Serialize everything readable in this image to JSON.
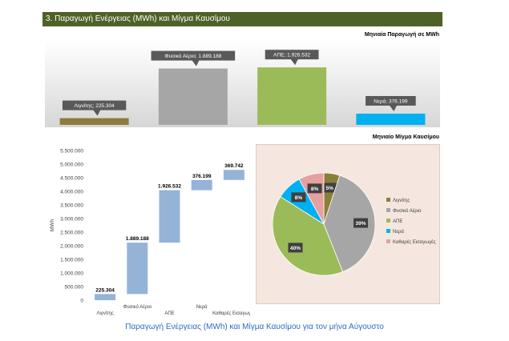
{
  "header": {
    "title": "3. Παραγωγή Ενέργειας (MWh) και Μίγμα Καυσίμου"
  },
  "caption": "Παραγωγή Ενέργειας (MWh) και Μίγμα Καυσίμου για τον μήνα Αύγουστο",
  "chart_data": [
    {
      "type": "bar",
      "title": "Μηνιαία Παραγωγή σε MWh",
      "categories": [
        "Λιγνίτης",
        "Φυσικό Αέριο",
        "ΑΠΕ",
        "Νερά"
      ],
      "values": [
        225304,
        1889188,
        1926532,
        376199
      ],
      "labels": [
        "Λιγνίτης; 225.304",
        "Φυσικό Αέριο; 1.889.188",
        "ΑΠΕ; 1.926.532",
        "Νερά; 376.199"
      ],
      "colors": [
        "#8b7d3a",
        "#a6a6a6",
        "#9bbb59",
        "#00b0f0"
      ],
      "ylim": [
        0,
        2200000
      ]
    },
    {
      "type": "bar",
      "subtype": "waterfall",
      "categories": [
        "Λιγνίτης",
        "Φυσικό Αέριο",
        "ΑΠΕ",
        "Νερά",
        "Καθαρές Εισαγωγές"
      ],
      "values": [
        225304,
        1889188,
        1926532,
        376199,
        369742
      ],
      "labels": [
        "225.304",
        "1.889.188",
        "1.926.532",
        "376.199",
        "369.742"
      ],
      "ylabel": "MWh",
      "yticks": [
        0,
        500000,
        1000000,
        1500000,
        2000000,
        2500000,
        3000000,
        3500000,
        4000000,
        4500000,
        5000000,
        5500000
      ],
      "ytick_labels": [
        "0",
        "500.000",
        "1.000.000",
        "1.500.000",
        "2.000.000",
        "2.500.000",
        "3.000.000",
        "3.500.000",
        "4.000.000",
        "4.500.000",
        "5.000.000",
        "5.500.000"
      ],
      "ylim": [
        0,
        5500000
      ],
      "color": "#95b3d7"
    },
    {
      "type": "pie",
      "title": "Μηνιαίο Μίγμα Καυσίμου",
      "categories": [
        "Λιγνίτης",
        "Φυσικό Αέριο",
        "ΑΠΕ",
        "Νερά",
        "Καθαρές Εισαγωγές"
      ],
      "values": [
        5,
        39,
        40,
        8,
        8
      ],
      "labels": [
        "5%",
        "39%",
        "40%",
        "8%",
        "8%"
      ],
      "colors": [
        "#8b7d3a",
        "#a6a6a6",
        "#9bbb59",
        "#00b0f0",
        "#e6a0a0"
      ],
      "legend": "right"
    }
  ]
}
